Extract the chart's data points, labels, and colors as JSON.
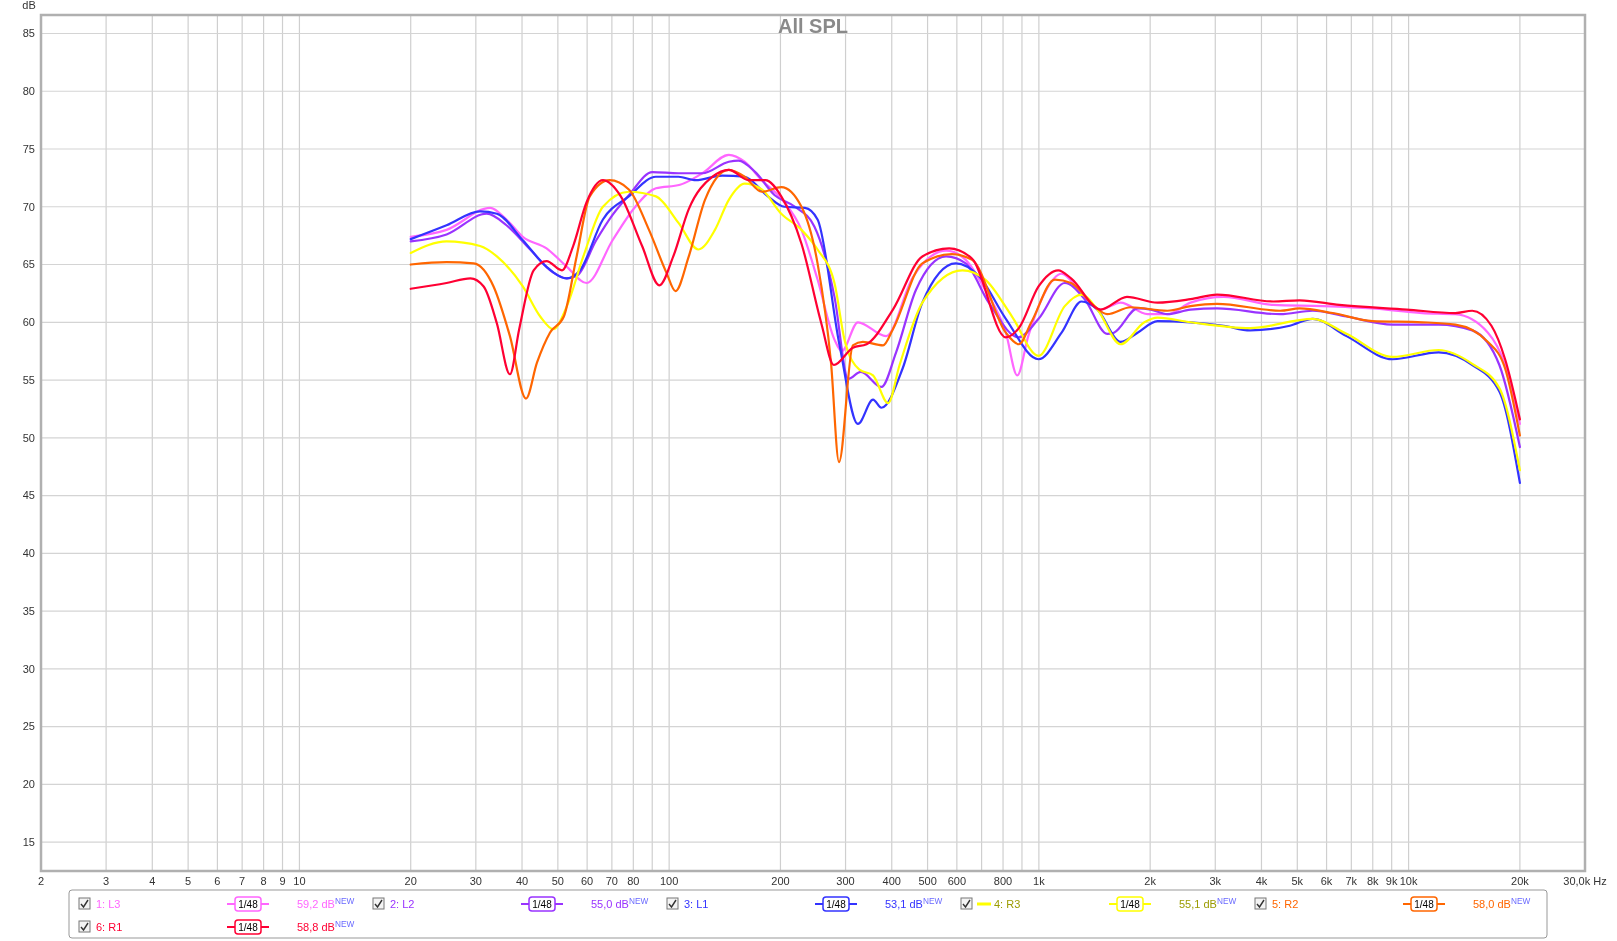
{
  "chart_data": {
    "type": "line",
    "title": "All SPL",
    "ylabel": "dB",
    "xlim": [
      2,
      30000
    ],
    "ylim": [
      12.5,
      86.6
    ],
    "log": "x",
    "grid": true,
    "legend": "bottom",
    "marker": "none",
    "line_style": "solid",
    "xticks": [
      2,
      3,
      4,
      5,
      6,
      7,
      8,
      9,
      10,
      20,
      30,
      40,
      50,
      60,
      70,
      80,
      {
        "value": 90,
        "label": null
      },
      100,
      200,
      300,
      400,
      500,
      600,
      {
        "value": 700,
        "label": null
      },
      800,
      {
        "value": 900,
        "label": null
      },
      {
        "value": 1000,
        "label": "1k"
      },
      {
        "value": 2000,
        "label": "2k"
      },
      {
        "value": 3000,
        "label": "3k"
      },
      {
        "value": 4000,
        "label": "4k"
      },
      {
        "value": 5000,
        "label": "5k"
      },
      {
        "value": 6000,
        "label": "6k"
      },
      {
        "value": 7000,
        "label": "7k"
      },
      {
        "value": 8000,
        "label": "8k"
      },
      {
        "value": 9000,
        "label": "9k"
      },
      {
        "value": 10000,
        "label": "10k"
      },
      {
        "value": 20000,
        "label": "20k"
      },
      {
        "value": 30000,
        "label": "30,0k Hz"
      }
    ],
    "yticks": [
      15,
      20,
      25,
      30,
      35,
      40,
      45,
      50,
      55,
      60,
      65,
      70,
      75,
      80,
      85
    ],
    "annotations": [
      "1/48",
      "59,2 dB$^{NEW}$",
      "1/48",
      "55,0 dB$^{NEW}$",
      "1/48",
      "53,1 dB$^{NEW}$",
      "1/48",
      "55,1 dB$^{NEW}$",
      "1/48",
      "58,0 dB$^{NEW}$",
      "1/48",
      "58,8 dB$^{NEW}$"
    ],
    "series": [
      {
        "name": "1: L3",
        "color": "#ff66ff",
        "x": [
          20,
          25,
          32.8,
          36.3,
          40.2,
          46.6,
          52.9,
          59.8,
          70.3,
          81,
          92.1,
          107,
          123,
          145,
          160,
          178,
          201,
          228,
          252,
          280,
          293,
          324,
          386,
          456,
          561,
          634,
          716,
          814,
          874,
          936,
          1035,
          1152,
          1304,
          1469,
          1663,
          1969,
          2226,
          2571,
          3160,
          4306,
          5857,
          7979,
          10884,
          13380,
          16390,
          18240,
          20000
        ],
        "values": [
          67.4,
          68.0,
          69.9,
          68.9,
          67.4,
          66.4,
          64.8,
          63.4,
          67.1,
          70.0,
          71.6,
          71.9,
          72.9,
          74.5,
          73.9,
          72.3,
          70.7,
          68.0,
          63.7,
          58.5,
          57.5,
          60.0,
          58.8,
          63.9,
          66.2,
          65.4,
          62.8,
          59.1,
          55.4,
          58.8,
          62.5,
          64.2,
          62.5,
          61.1,
          61.7,
          60.7,
          60.7,
          61.7,
          62.2,
          61.5,
          61.4,
          61.2,
          60.8,
          60.7,
          59.1,
          56.3,
          51.2
        ]
      },
      {
        "name": "2: L2",
        "color": "#9933ff",
        "x": [
          20,
          25,
          32.1,
          36.3,
          42.1,
          48.6,
          52.9,
          56.2,
          63.5,
          70.3,
          77.8,
          90.1,
          106,
          123,
          145,
          154,
          171,
          193,
          219,
          247,
          280,
          305,
          330,
          375,
          411,
          465,
          561,
          634,
          732,
          881,
          998,
          1175,
          1330,
          1530,
          1596,
          1849,
          2008,
          2226,
          2571,
          3032,
          4494,
          5505,
          6793,
          9054,
          12060,
          14870,
          17600,
          20000
        ],
        "values": [
          67.0,
          67.6,
          69.4,
          68.4,
          66.3,
          64.3,
          63.8,
          64.0,
          67.1,
          69.3,
          71.0,
          73.0,
          72.9,
          72.9,
          73.9,
          74.0,
          73.0,
          71.0,
          70.0,
          68.3,
          62.2,
          55.1,
          55.7,
          54.4,
          57.4,
          62.8,
          65.7,
          65.1,
          61.7,
          58.7,
          60.3,
          63.4,
          62.0,
          59.0,
          59.1,
          61.2,
          61.1,
          60.7,
          61.1,
          61.2,
          60.7,
          61.0,
          60.5,
          59.8,
          59.8,
          59.3,
          56.3,
          49.2
        ]
      },
      {
        "name": "3: L1",
        "color": "#3333ff",
        "x": [
          20,
          25,
          30.8,
          34.2,
          40.2,
          46.6,
          52.9,
          57.4,
          66.2,
          77.8,
          92.1,
          106,
          118,
          139,
          160,
          185,
          205,
          233,
          252,
          289,
          324,
          356,
          375,
          428,
          484,
          596,
          688,
          814,
          998,
          1152,
          1304,
          1440,
          1663,
          1849,
          2093,
          2571,
          3160,
          3729,
          4773,
          5505,
          6793,
          9054,
          12060,
          14870,
          17600,
          20000
        ],
        "values": [
          67.2,
          68.4,
          69.6,
          69.4,
          67.1,
          64.8,
          63.8,
          64.5,
          68.9,
          70.9,
          72.6,
          72.6,
          72.3,
          72.7,
          72.6,
          70.9,
          70.0,
          69.9,
          68.9,
          58.0,
          51.2,
          53.3,
          52.6,
          56.0,
          61.7,
          65.1,
          64.0,
          60.3,
          56.8,
          59.1,
          61.8,
          61.1,
          58.3,
          59.1,
          60.1,
          60.0,
          59.7,
          59.3,
          59.7,
          60.3,
          58.8,
          56.8,
          57.4,
          56.3,
          54.0,
          46.1
        ]
      },
      {
        "name": "4: R3",
        "color": "#ffff00",
        "x": [
          20,
          25,
          30.8,
          34.2,
          40.2,
          44.8,
          48.6,
          52.9,
          58.6,
          66.2,
          77.8,
          92.1,
          106,
          120,
          133,
          145,
          160,
          178,
          201,
          228,
          252,
          280,
          298,
          327,
          356,
          391,
          420,
          484,
          621,
          716,
          846,
          998,
          1175,
          1304,
          1440,
          1663,
          1929,
          2093,
          2571,
          3729,
          5505,
          6793,
          9054,
          12060,
          14870,
          17600,
          20000
        ],
        "values": [
          66.0,
          67.0,
          66.6,
          65.7,
          63.1,
          60.5,
          59.4,
          61.4,
          65.7,
          70.0,
          71.3,
          70.9,
          68.6,
          66.3,
          68.0,
          70.6,
          72.0,
          71.5,
          69.4,
          68.0,
          66.3,
          63.4,
          58.5,
          55.9,
          55.4,
          53.0,
          56.3,
          61.7,
          64.5,
          63.7,
          60.5,
          57.1,
          61.4,
          62.4,
          61.1,
          58.1,
          60.0,
          60.4,
          60.0,
          59.5,
          60.3,
          59.0,
          57.0,
          57.6,
          56.4,
          54.3,
          47.2
        ]
      },
      {
        "name": "5: R2",
        "color": "#ff6600",
        "x": [
          20,
          25,
          29.6,
          33.5,
          37.1,
          41.0,
          43.9,
          47.6,
          51.9,
          56.2,
          61.0,
          69.0,
          77.8,
          88.2,
          98.3,
          104,
          113,
          125,
          145,
          160,
          178,
          201,
          228,
          252,
          274,
          288,
          314,
          334,
          379,
          403,
          484,
          582,
          660,
          814,
          883,
          954,
          1105,
          1222,
          1413,
          1530,
          1770,
          2226,
          2571,
          3032,
          4494,
          5069,
          6230,
          7979,
          10884,
          13380,
          16390,
          18240,
          20000
        ],
        "values": [
          65.0,
          65.2,
          65.1,
          63.1,
          58.8,
          53.4,
          56.5,
          59.1,
          60.5,
          65.7,
          70.9,
          72.3,
          71.5,
          68.0,
          64.3,
          62.7,
          65.7,
          70.6,
          73.2,
          72.6,
          71.3,
          71.7,
          70.0,
          65.1,
          56.5,
          47.9,
          58.0,
          58.3,
          58.0,
          59.4,
          65.1,
          65.9,
          65.4,
          59.1,
          58.1,
          60.0,
          63.7,
          63.4,
          61.4,
          60.7,
          61.3,
          61.0,
          61.4,
          61.6,
          61.0,
          61.2,
          60.8,
          60.1,
          60.0,
          59.8,
          58.3,
          56.0,
          50.2
        ]
      },
      {
        "name": "6: R1",
        "color": "#ff0033",
        "x": [
          20,
          25,
          29,
          31.5,
          34.2,
          37.1,
          39.3,
          43,
          46.6,
          51.3,
          55,
          59.8,
          66.2,
          74,
          84.5,
          94.1,
          102.6,
          113,
          131,
          145,
          164,
          182,
          201,
          228,
          258,
          279,
          314,
          342,
          403,
          484,
          572,
          660,
          814,
          883,
          998,
          1128,
          1222,
          1469,
          1731,
          2093,
          2571,
          3032,
          4306,
          5069,
          6498,
          9887,
          13380,
          14870,
          16750,
          18240,
          20000
        ],
        "values": [
          62.9,
          63.4,
          63.8,
          63.1,
          59.9,
          55.5,
          59.4,
          64.5,
          65.3,
          64.5,
          66.6,
          70.4,
          72.3,
          70.9,
          66.6,
          63.2,
          65.7,
          69.8,
          72.6,
          73.2,
          72.3,
          72.3,
          70.9,
          66.8,
          59.9,
          56.3,
          57.8,
          58.1,
          61.1,
          65.7,
          66.4,
          65.5,
          58.7,
          59.5,
          63.1,
          64.5,
          63.8,
          61.1,
          62.2,
          61.7,
          62.0,
          62.4,
          61.8,
          61.9,
          61.5,
          61.1,
          60.8,
          61.0,
          59.7,
          56.8,
          51.6
        ]
      }
    ]
  }
}
